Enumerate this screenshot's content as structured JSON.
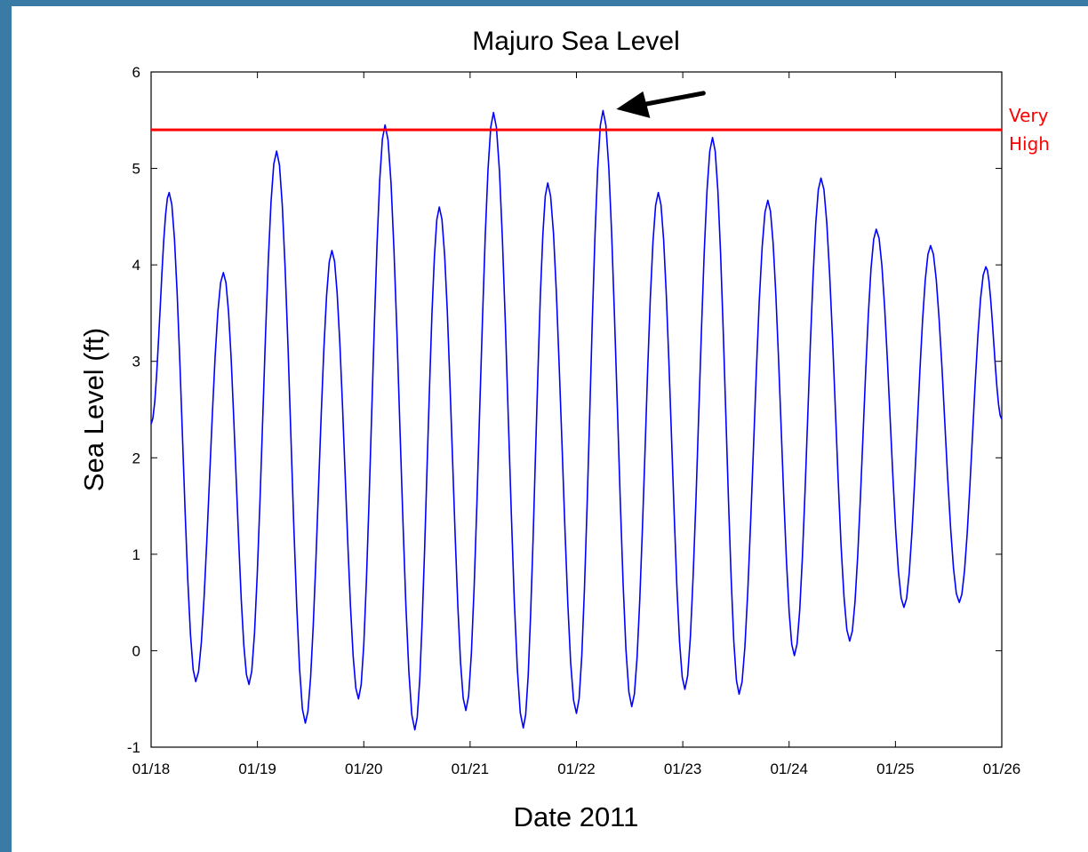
{
  "chart_data": {
    "type": "line",
    "title": "Majuro Sea Level",
    "xlabel": "Date 2011",
    "ylabel": "Sea Level (ft)",
    "xlim": [
      0,
      8
    ],
    "ylim": [
      -1,
      6
    ],
    "grid": false,
    "x_ticks": [
      "01/18",
      "01/19",
      "01/20",
      "01/21",
      "01/22",
      "01/23",
      "01/24",
      "01/25",
      "01/26"
    ],
    "y_ticks": [
      -1,
      0,
      1,
      2,
      3,
      4,
      5,
      6
    ],
    "series": [
      {
        "color": "#0000ff",
        "extremes": [
          [
            0.0,
            2.35
          ],
          [
            0.17,
            4.75
          ],
          [
            0.42,
            -0.32
          ],
          [
            0.68,
            3.92
          ],
          [
            0.92,
            -0.35
          ],
          [
            1.18,
            5.18
          ],
          [
            1.45,
            -0.75
          ],
          [
            1.7,
            4.15
          ],
          [
            1.95,
            -0.5
          ],
          [
            2.2,
            5.45
          ],
          [
            2.48,
            -0.82
          ],
          [
            2.71,
            4.6
          ],
          [
            2.96,
            -0.62
          ],
          [
            3.22,
            5.58
          ],
          [
            3.5,
            -0.8
          ],
          [
            3.73,
            4.85
          ],
          [
            4.0,
            -0.65
          ],
          [
            4.25,
            5.6
          ],
          [
            4.52,
            -0.58
          ],
          [
            4.77,
            4.75
          ],
          [
            5.02,
            -0.4
          ],
          [
            5.28,
            5.32
          ],
          [
            5.53,
            -0.45
          ],
          [
            5.8,
            4.67
          ],
          [
            6.05,
            -0.05
          ],
          [
            6.3,
            4.9
          ],
          [
            6.57,
            0.1
          ],
          [
            6.82,
            4.37
          ],
          [
            7.08,
            0.45
          ],
          [
            7.33,
            4.2
          ],
          [
            7.6,
            0.5
          ],
          [
            7.85,
            3.98
          ],
          [
            8.0,
            2.4
          ]
        ]
      }
    ],
    "threshold": {
      "value": 5.4,
      "color": "#ff0000",
      "label_line1": "Very",
      "label_line2": "High"
    },
    "arrow_annotation": {
      "points_to": [
        4.3,
        5.55
      ],
      "color": "#000000"
    }
  }
}
